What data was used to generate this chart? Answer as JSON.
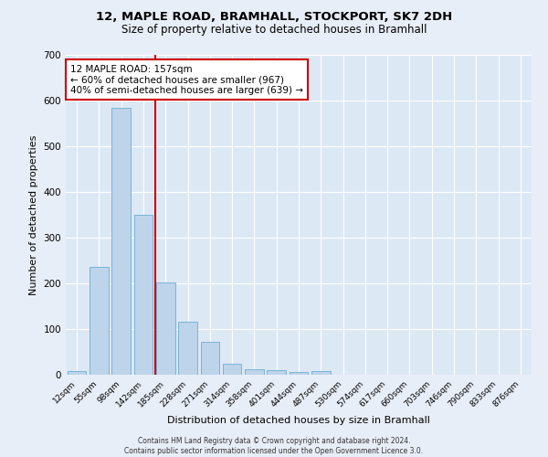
{
  "title": "12, MAPLE ROAD, BRAMHALL, STOCKPORT, SK7 2DH",
  "subtitle": "Size of property relative to detached houses in Bramhall",
  "xlabel": "Distribution of detached houses by size in Bramhall",
  "ylabel": "Number of detached properties",
  "bar_values": [
    8,
    237,
    585,
    350,
    203,
    117,
    73,
    25,
    13,
    10,
    7,
    8,
    0,
    0,
    0,
    0,
    0,
    0,
    0,
    0,
    0
  ],
  "categories": [
    "12sqm",
    "55sqm",
    "98sqm",
    "142sqm",
    "185sqm",
    "228sqm",
    "271sqm",
    "314sqm",
    "358sqm",
    "401sqm",
    "444sqm",
    "487sqm",
    "530sqm",
    "574sqm",
    "617sqm",
    "660sqm",
    "703sqm",
    "746sqm",
    "790sqm",
    "833sqm",
    "876sqm"
  ],
  "bar_color": "#bdd4ea",
  "bar_edgecolor": "#6aadd5",
  "background_color": "#dde8f5",
  "grid_color": "#ffffff",
  "vline_color": "#cc0000",
  "vline_pos": 3.55,
  "annotation_text": "12 MAPLE ROAD: 157sqm\n← 60% of detached houses are smaller (967)\n40% of semi-detached houses are larger (639) →",
  "annotation_box_color": "#ffffff",
  "annotation_box_edgecolor": "#cc0000",
  "ylim": [
    0,
    700
  ],
  "yticks": [
    0,
    100,
    200,
    300,
    400,
    500,
    600,
    700
  ],
  "fig_bg_color": "#e8eef8",
  "footer_line1": "Contains HM Land Registry data © Crown copyright and database right 2024.",
  "footer_line2": "Contains public sector information licensed under the Open Government Licence 3.0."
}
